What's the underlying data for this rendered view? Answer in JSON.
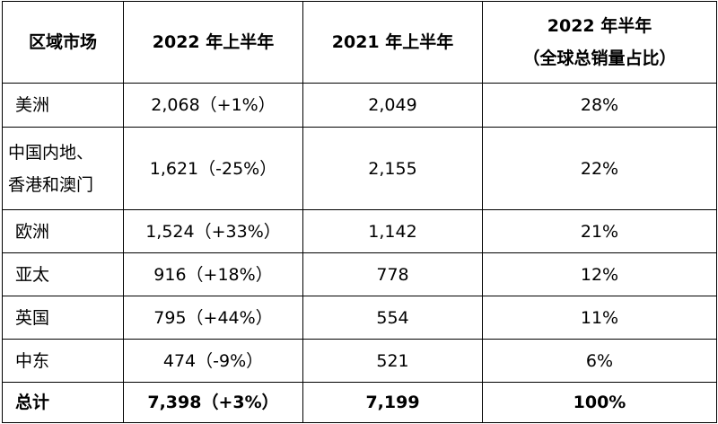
{
  "table": {
    "headers": {
      "region": "区域市场",
      "h1_2022": "2022 年上半年",
      "h1_2021": "2021 年上半年",
      "share_line1": "2022 年半年",
      "share_line2": "（全球总销量占比）"
    },
    "rows": [
      {
        "region": [
          "美洲"
        ],
        "h1_2022": "2,068（+1%）",
        "h1_2021": "2,049",
        "share": "28%"
      },
      {
        "region": [
          "中国内地、",
          "香港和澳门"
        ],
        "h1_2022": "1,621（-25%）",
        "h1_2021": "2,155",
        "share": "22%"
      },
      {
        "region": [
          "欧洲"
        ],
        "h1_2022": "1,524（+33%）",
        "h1_2021": "1,142",
        "share": "21%"
      },
      {
        "region": [
          "亚太"
        ],
        "h1_2022": "916（+18%）",
        "h1_2021": "778",
        "share": "12%"
      },
      {
        "region": [
          "英国"
        ],
        "h1_2022": "795（+44%）",
        "h1_2021": "554",
        "share": "11%"
      },
      {
        "region": [
          "中东"
        ],
        "h1_2022": "474（-9%）",
        "h1_2021": "521",
        "share": "6%"
      }
    ],
    "total": {
      "region": "总计",
      "h1_2022": "7,398（+3%）",
      "h1_2021": "7,199",
      "share": "100%"
    }
  }
}
